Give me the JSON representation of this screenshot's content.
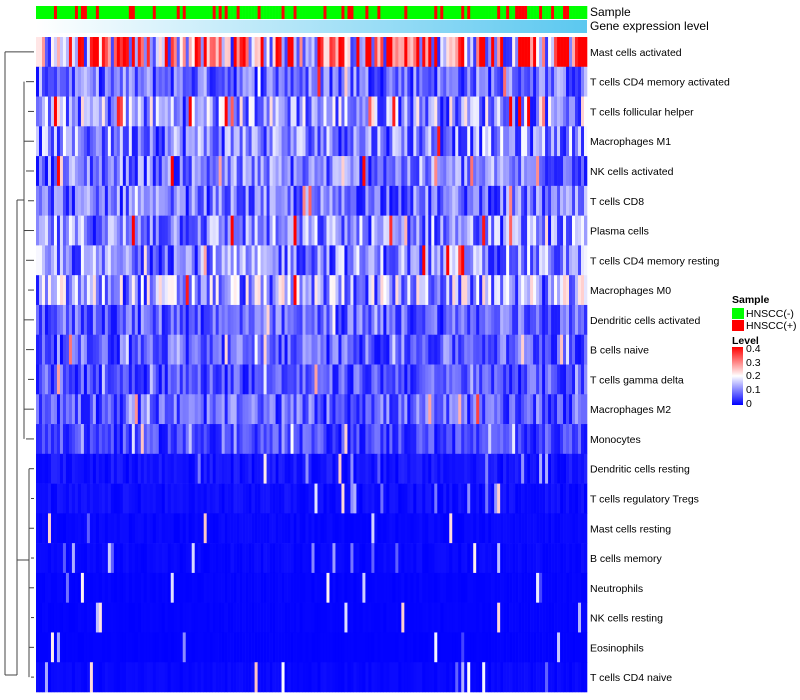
{
  "chart_data": {
    "type": "heatmap",
    "title": "",
    "annotations": [
      "Sample",
      "Gene expression level"
    ],
    "rows": [
      {
        "name": "Mast cells activated",
        "mean": 0.25
      },
      {
        "name": "T cells CD4 memory activated",
        "mean": 0.08
      },
      {
        "name": "T cells follicular helper",
        "mean": 0.12
      },
      {
        "name": "Macrophages M1",
        "mean": 0.1
      },
      {
        "name": "NK cells activated",
        "mean": 0.09
      },
      {
        "name": "T cells CD8",
        "mean": 0.08
      },
      {
        "name": "Plasma cells",
        "mean": 0.1
      },
      {
        "name": "T cells CD4 memory resting",
        "mean": 0.1
      },
      {
        "name": "Macrophages M0",
        "mean": 0.12
      },
      {
        "name": "Dendritic cells activated",
        "mean": 0.07
      },
      {
        "name": "B cells naive",
        "mean": 0.07
      },
      {
        "name": "T cells gamma delta",
        "mean": 0.06
      },
      {
        "name": "Macrophages M2",
        "mean": 0.07
      },
      {
        "name": "Monocytes",
        "mean": 0.05
      },
      {
        "name": "Dendritic cells resting",
        "mean": 0.03
      },
      {
        "name": "T cells regulatory  Tregs",
        "mean": 0.02
      },
      {
        "name": "Mast cells resting",
        "mean": 0.01
      },
      {
        "name": "B cells memory",
        "mean": 0.012
      },
      {
        "name": "Neutrophils",
        "mean": 0.006
      },
      {
        "name": "NK cells resting",
        "mean": 0.005
      },
      {
        "name": "Eosinophils",
        "mean": 0.003
      },
      {
        "name": "T cells CD4 naive",
        "mean": 0.01
      }
    ],
    "n_samples": 184,
    "fraction_hnscc_pos": 0.25,
    "color_scale": {
      "min": 0,
      "max": 0.4,
      "low": "#0000FF",
      "mid": "#FFFFFF",
      "high": "#FF0000",
      "mid_value": 0.2
    },
    "legend": {
      "sample_title": "Sample",
      "sample_items": [
        {
          "label": "HNSCC(-)",
          "color": "#00FF00"
        },
        {
          "label": "HNSCC(+)",
          "color": "#FF0000"
        }
      ],
      "level_title": "Level",
      "level_ticks": [
        "0.4",
        "0.3",
        "0.2",
        "0.1",
        "0"
      ]
    },
    "gene_expression_gradient": {
      "low": "#FFFFFF",
      "high": "#5BC8F0"
    },
    "legend_position": "right"
  }
}
